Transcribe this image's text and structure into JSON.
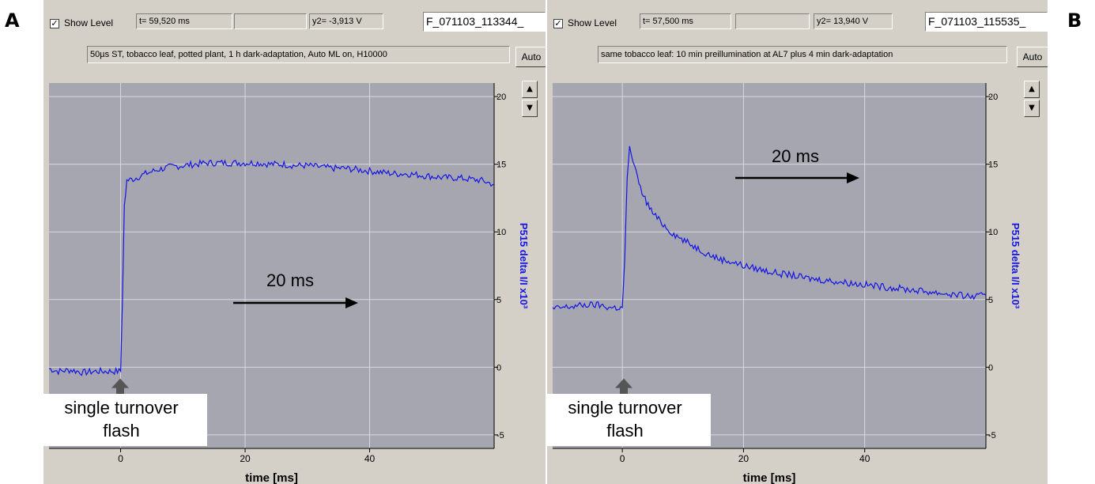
{
  "panel_letters": {
    "a": "A",
    "b": "B"
  },
  "charts": [
    {
      "show_level_label": "Show Level",
      "show_level_checked": true,
      "time_readout": "t= 59,520 ms",
      "blank_readout": "",
      "y2_readout": "y2= -3,913 V",
      "filename": "F_071103_113344_",
      "description": "50µs ST, tobacco leaf, potted plant, 1 h dark-adaptation, Auto ML on, H10000",
      "auto_label": "Auto",
      "spin_up": "▲",
      "spin_down": "▼",
      "annotation_line1": "single turnover",
      "annotation_line2": "flash",
      "scale_label": "20 ms"
    },
    {
      "show_level_label": "Show Level",
      "show_level_checked": true,
      "time_readout": "t= 57,500 ms",
      "blank_readout": "",
      "y2_readout": "y2= 13,940 V",
      "filename": "F_071103_115535_",
      "description": "same tobacco leaf: 10 min preillumination at AL7 plus 4 min dark-adaptation",
      "auto_label": "Auto",
      "spin_up": "▲",
      "spin_down": "▼",
      "annotation_line1": "single turnover",
      "annotation_line2": "flash",
      "scale_label": "20 ms"
    }
  ],
  "chart_data": [
    {
      "type": "line",
      "title": "",
      "xlabel": "time [ms]",
      "ylabel": "P515 delta I/I x10³",
      "xlim": [
        -11.5,
        60
      ],
      "ylim": [
        -6,
        21
      ],
      "x_ticks": [
        0,
        20,
        40
      ],
      "y_ticks": [
        -5,
        0,
        5,
        10,
        15,
        20
      ],
      "grid": true,
      "series_color": "#1414e6",
      "series": [
        {
          "x": [
            -11.5,
            -10,
            -8,
            -6,
            -4,
            -2,
            0,
            0.3,
            0.6,
            1,
            2,
            4,
            6,
            8,
            10,
            12,
            14,
            16,
            18,
            20,
            22,
            24,
            26,
            28,
            30,
            32,
            34,
            36,
            38,
            40,
            42,
            44,
            46,
            48,
            50,
            52,
            54,
            56,
            58,
            60
          ],
          "values": [
            -0.1,
            -0.3,
            -0.2,
            -0.4,
            -0.3,
            -0.3,
            -0.3,
            5,
            12,
            13.8,
            13.9,
            14.3,
            14.6,
            14.8,
            14.9,
            15.0,
            15.1,
            15.1,
            15.1,
            15.1,
            15.1,
            15.0,
            15.0,
            14.9,
            14.9,
            14.8,
            14.7,
            14.7,
            14.6,
            14.5,
            14.4,
            14.3,
            14.3,
            14.2,
            14.1,
            14.0,
            14.0,
            13.9,
            13.8,
            13.5
          ]
        }
      ]
    },
    {
      "type": "line",
      "title": "",
      "xlabel": "time [ms]",
      "ylabel": "P515 delta I/I x10³",
      "xlim": [
        -11.5,
        60
      ],
      "ylim": [
        -6,
        21
      ],
      "x_ticks": [
        0,
        20,
        40
      ],
      "y_ticks": [
        -5,
        0,
        5,
        10,
        15,
        20
      ],
      "grid": true,
      "series_color": "#1414e6",
      "series": [
        {
          "x": [
            -11.5,
            -10,
            -8,
            -6,
            -4,
            -2,
            0,
            0.4,
            0.8,
            1.2,
            2,
            3,
            4,
            5,
            6,
            8,
            10,
            12,
            14,
            16,
            18,
            20,
            22,
            24,
            26,
            28,
            30,
            32,
            34,
            36,
            38,
            40,
            42,
            44,
            46,
            48,
            50,
            52,
            54,
            56,
            58,
            60
          ],
          "values": [
            4.3,
            4.4,
            4.5,
            4.6,
            4.6,
            4.4,
            4.4,
            8,
            14,
            16.2,
            14.8,
            13.2,
            12.2,
            11.4,
            10.9,
            10.0,
            9.4,
            8.9,
            8.4,
            8.0,
            7.8,
            7.5,
            7.3,
            7.1,
            6.9,
            6.8,
            6.6,
            6.5,
            6.4,
            6.3,
            6.2,
            6.1,
            6.0,
            5.9,
            5.8,
            5.7,
            5.6,
            5.5,
            5.4,
            5.3,
            5.2,
            5.3
          ]
        }
      ]
    }
  ]
}
